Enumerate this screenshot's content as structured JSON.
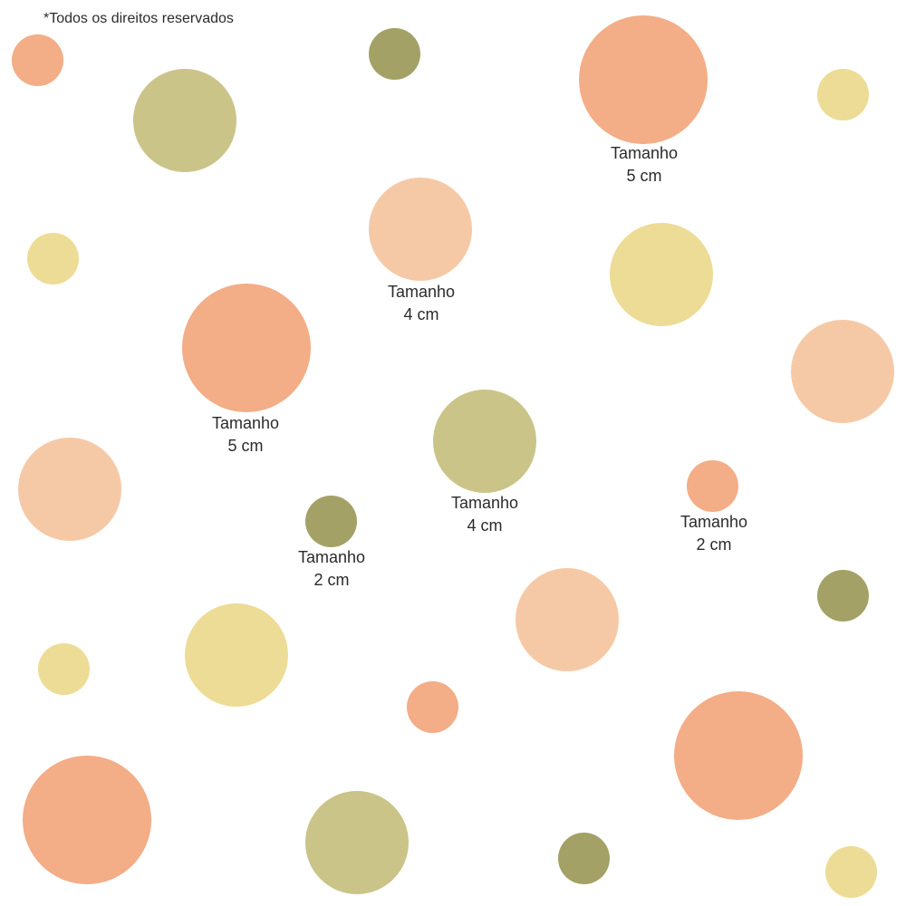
{
  "copyright": "*Todos os direitos reservados",
  "colors": {
    "salmon": "#f3ad87",
    "peach": "#f6c9a6",
    "sage": "#cbc489",
    "olive": "#a3a166",
    "butter": "#eddc96"
  },
  "size_labels": [
    {
      "word": "Tamanho",
      "size": "5 cm"
    },
    {
      "word": "Tamanho",
      "size": "4 cm"
    },
    {
      "word": "Tamanho",
      "size": "5 cm"
    },
    {
      "word": "Tamanho",
      "size": "4 cm"
    },
    {
      "word": "Tamanho",
      "size": "2 cm"
    },
    {
      "word": "Tamanho",
      "size": "2 cm"
    }
  ]
}
